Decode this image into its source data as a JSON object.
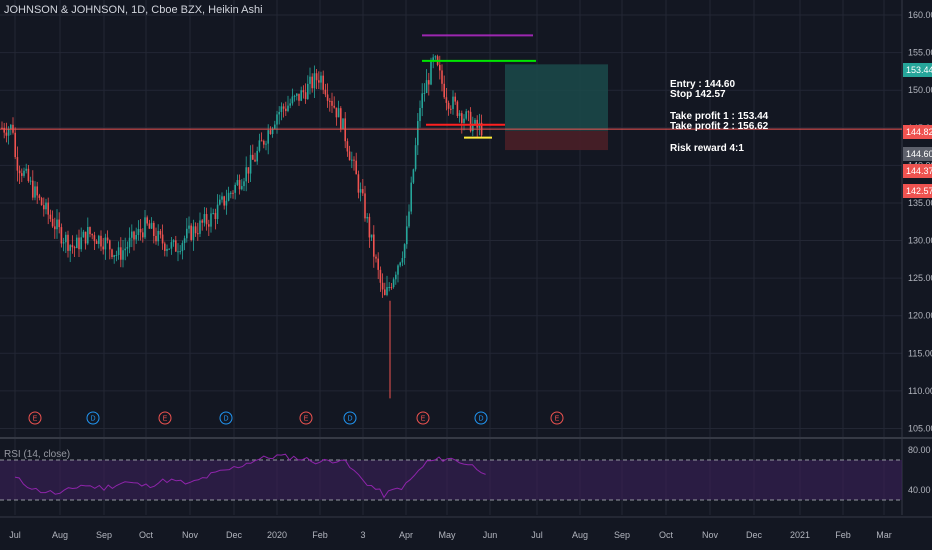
{
  "header": {
    "title": "JOHNSON & JOHNSON, 1D, Cboe BZX, Heikin Ashi",
    "rsi_label": "RSI (14, close)"
  },
  "notes": {
    "entry": "Entry : 144.60",
    "stop": "Stop 142.57",
    "tp1": "Take profit 1 : 153.44",
    "tp2": "Take profit 2 : 156.62",
    "rr": "Risk reward 4:1"
  },
  "colors": {
    "background": "#131722",
    "grid": "#232734",
    "up": "#26a69a",
    "down": "#ef5350",
    "rsi_line": "#7b1fa2",
    "rsi_band": "#3b1f5a",
    "purple_level": "#9c27b0",
    "green_level": "#00e600",
    "red_level": "#ff2020",
    "yellow_level": "#ffeb3b",
    "profit_zone": "#1b4a4a",
    "loss_zone": "#4a1f27"
  },
  "chart_data": {
    "type": "candlestick",
    "title": "JOHNSON & JOHNSON, 1D, Cboe BZX, Heikin Ashi",
    "x_ticks": [
      "Jul",
      "Aug",
      "Sep",
      "Oct",
      "Nov",
      "Dec",
      "2020",
      "Feb",
      "3",
      "Apr",
      "May",
      "Jun",
      "Jul",
      "Aug",
      "Sep",
      "Oct",
      "Nov",
      "Dec",
      "2021",
      "Feb",
      "Mar"
    ],
    "y_ticks": [
      105,
      110,
      115,
      120,
      125,
      130,
      135,
      140,
      145,
      150,
      155,
      160
    ],
    "ylim": [
      104,
      162
    ],
    "price_path": [
      [
        "Jul",
        141
      ],
      [
        "Jul",
        136
      ],
      [
        "Aug",
        131
      ],
      [
        "Aug",
        129
      ],
      [
        "Aug",
        131
      ],
      [
        "Sep",
        130
      ],
      [
        "Sep",
        128
      ],
      [
        "Sep",
        130
      ],
      [
        "Oct",
        132
      ],
      [
        "Oct",
        130
      ],
      [
        "Oct",
        129
      ],
      [
        "Nov",
        131
      ],
      [
        "Nov",
        133
      ],
      [
        "Dec",
        137
      ],
      [
        "Dec",
        141
      ],
      [
        "2020",
        147
      ],
      [
        "2020",
        149
      ],
      [
        "Feb",
        152
      ],
      [
        "Feb",
        146
      ],
      [
        "3",
        135
      ],
      [
        "3",
        122
      ],
      [
        "Apr",
        130
      ],
      [
        "Apr",
        148
      ],
      [
        "Apr",
        154
      ],
      [
        "May",
        149
      ],
      [
        "May",
        147
      ],
      [
        "May",
        145
      ]
    ],
    "last_price_line": 144.82,
    "levels": {
      "purple": 157.3,
      "green": 153.9,
      "red": 145.4,
      "yellow": 143.7
    },
    "position": {
      "entry": 144.6,
      "stop": 142.57,
      "take_profit_1": 153.44,
      "take_profit_2": 156.62,
      "risk_reward": "4:1"
    },
    "price_tags": [
      {
        "value": "153.44",
        "color": "#26a69a"
      },
      {
        "value": "144.82",
        "color": "#ef5350"
      },
      {
        "value": "144.60",
        "color": "#5d606b"
      },
      {
        "value": "144.37",
        "color": "#ef5350"
      },
      {
        "value": "142.57",
        "color": "#ef5350"
      }
    ],
    "event_markers": [
      {
        "label": "E",
        "type": "earnings"
      },
      {
        "label": "D",
        "type": "dividend"
      },
      {
        "label": "E",
        "type": "earnings"
      },
      {
        "label": "D",
        "type": "dividend"
      },
      {
        "label": "E",
        "type": "earnings"
      },
      {
        "label": "D",
        "type": "dividend"
      },
      {
        "label": "E",
        "type": "earnings"
      },
      {
        "label": "D",
        "type": "dividend"
      },
      {
        "label": "E",
        "type": "earnings"
      }
    ],
    "rsi": {
      "label": "RSI (14, close)",
      "levels": [
        70,
        30
      ],
      "y_ticks": [
        "80.00",
        "40.00"
      ],
      "path": [
        [
          "Jul",
          52
        ],
        [
          "Jul",
          40
        ],
        [
          "Aug",
          36
        ],
        [
          "Aug",
          45
        ],
        [
          "Sep",
          42
        ],
        [
          "Sep",
          48
        ],
        [
          "Oct",
          44
        ],
        [
          "Oct",
          50
        ],
        [
          "Nov",
          46
        ],
        [
          "Nov",
          55
        ],
        [
          "Dec",
          62
        ],
        [
          "Dec",
          70
        ],
        [
          "2020",
          74
        ],
        [
          "2020",
          72
        ],
        [
          "Feb",
          68
        ],
        [
          "Feb",
          71
        ],
        [
          "3",
          50
        ],
        [
          "3",
          35
        ],
        [
          "Apr",
          45
        ],
        [
          "Apr",
          68
        ],
        [
          "May",
          72
        ],
        [
          "May",
          66
        ],
        [
          "Jun",
          56
        ]
      ]
    }
  }
}
